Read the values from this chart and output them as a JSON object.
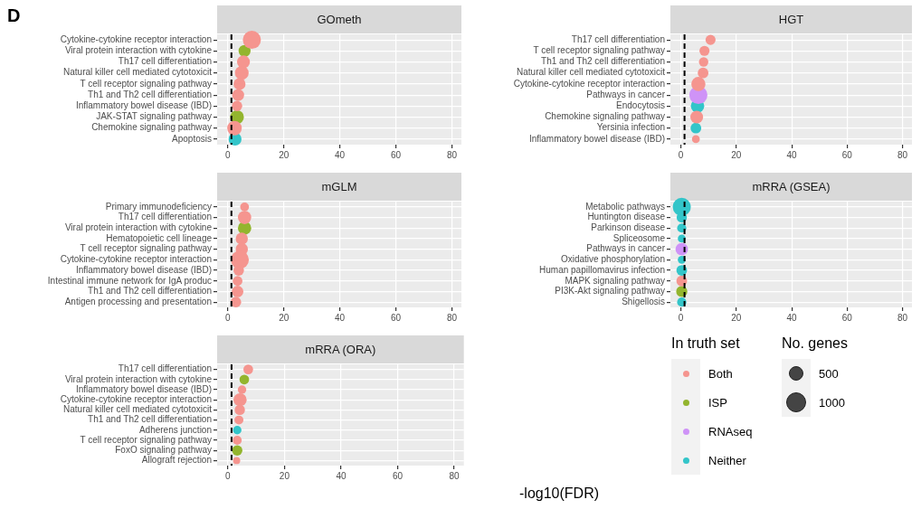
{
  "chart_data": [
    {
      "type": "bubble",
      "orientation": "horizontal",
      "title": "GOmeth",
      "annotations": [
        "D"
      ],
      "categories": [
        "Cytokine-cytokine receptor interaction",
        "Viral protein interaction with cytokine",
        "Th17 cell differentiation",
        "Natural killer cell mediated cytotoxicit",
        "T cell receptor signaling pathway",
        "Th1 and Th2 cell differentiation",
        "Inflammatory bowel disease (IBD)",
        "JAK-STAT signaling pathway",
        "Chemokine signaling pathway",
        "Apoptosis"
      ],
      "xlim": [
        -3.8,
        83.4
      ],
      "xticks": [
        0,
        20,
        40,
        60,
        80
      ],
      "grid": true,
      "ref_lines": [
        {
          "axis": "x",
          "value": 1.3,
          "color": "#000000",
          "line_style": "dashed"
        }
      ],
      "series": [
        {
          "color": "#f5958f",
          "values": [
            8.6,
            null,
            5.6,
            5.0,
            4.2,
            3.7,
            3.3,
            null,
            2.4,
            null
          ],
          "sizes": [
            1,
            null,
            0.51,
            0.58,
            0.44,
            0.44,
            0.33,
            null,
            0.65,
            null
          ]
        },
        {
          "color": "#93b52e",
          "values": [
            null,
            6.0,
            null,
            null,
            null,
            null,
            null,
            3.3,
            null,
            null
          ],
          "sizes": [
            null,
            0.44,
            null,
            null,
            null,
            null,
            null,
            0.58,
            null,
            null
          ]
        },
        {
          "color": "#33c5c9",
          "values": [
            null,
            null,
            null,
            null,
            null,
            null,
            null,
            null,
            null,
            2.6
          ],
          "sizes": [
            null,
            null,
            null,
            null,
            null,
            null,
            null,
            null,
            null,
            0.51
          ]
        }
      ]
    },
    {
      "type": "bubble",
      "orientation": "horizontal",
      "title": "HGT",
      "categories": [
        "Th17 cell differentiation",
        "T cell receptor signaling pathway",
        "Th1 and Th2 cell differentiation",
        "Natural killer cell mediated cytotoxicit",
        "Cytokine-cytokine receptor interaction",
        "Pathways in cancer",
        "Endocytosis",
        "Chemokine signaling pathway",
        "Yersinia infection",
        "Inflammatory bowel disease (IBD)"
      ],
      "xlim": [
        -3.8,
        83.4
      ],
      "xticks": [
        0,
        20,
        40,
        60,
        80
      ],
      "grid": true,
      "ref_lines": [
        {
          "axis": "x",
          "value": 1.3,
          "color": "#000000",
          "line_style": "dashed"
        }
      ],
      "series": [
        {
          "color": "#f5958f",
          "values": [
            10.7,
            8.5,
            8.2,
            8.0,
            6.3,
            null,
            null,
            5.7,
            null,
            5.4
          ],
          "sizes": [
            0.31,
            0.31,
            0.27,
            0.35,
            0.61,
            null,
            null,
            0.5,
            null,
            0.19
          ]
        },
        {
          "color": "#cf93f7",
          "values": [
            null,
            null,
            null,
            null,
            null,
            6.3,
            null,
            null,
            null,
            null
          ],
          "sizes": [
            null,
            null,
            null,
            null,
            null,
            1,
            null,
            null,
            null,
            null
          ]
        },
        {
          "color": "#33c5c9",
          "values": [
            null,
            null,
            null,
            null,
            null,
            null,
            6.0,
            null,
            5.4,
            null
          ],
          "sizes": [
            null,
            null,
            null,
            null,
            null,
            null,
            0.55,
            null,
            0.35,
            null
          ]
        }
      ]
    },
    {
      "type": "bubble",
      "orientation": "horizontal",
      "title": "mGLM",
      "categories": [
        "Primary immunodeficiency",
        "Th17 cell differentiation",
        "Viral protein interaction with cytokine",
        "Hematopoietic cell lineage",
        "T cell receptor signaling pathway",
        "Cytokine-cytokine receptor interaction",
        "Inflammatory bowel disease (IBD)",
        "Intestinal immune network for IgA produc",
        "Th1 and Th2 cell differentiation",
        "Antigen processing and presentation"
      ],
      "xlim": [
        -3.8,
        83.4
      ],
      "xticks": [
        0,
        20,
        40,
        60,
        80
      ],
      "grid": true,
      "ref_lines": [
        {
          "axis": "x",
          "value": 1.3,
          "color": "#000000",
          "line_style": "dashed"
        }
      ],
      "series": [
        {
          "color": "#f5958f",
          "values": [
            6.0,
            6.0,
            null,
            5.0,
            5.0,
            4.3,
            3.9,
            3.5,
            3.5,
            2.9
          ],
          "sizes": [
            0.24,
            0.54,
            null,
            0.46,
            0.46,
            1,
            0.34,
            0.29,
            0.41,
            0.34
          ]
        },
        {
          "color": "#93b52e",
          "values": [
            null,
            null,
            6.0,
            null,
            null,
            null,
            null,
            null,
            null,
            null
          ],
          "sizes": [
            null,
            null,
            0.54,
            null,
            null,
            null,
            null,
            null,
            null,
            null
          ]
        }
      ]
    },
    {
      "type": "bubble",
      "orientation": "horizontal",
      "title": "mRRA (GSEA)",
      "categories": [
        "Metabolic pathways",
        "Huntington disease",
        "Parkinson disease",
        "Spliceosome",
        "Pathways in cancer",
        "Oxidative phosphorylation",
        "Human papillomavirus infection",
        "MAPK signaling pathway",
        "PI3K-Akt signaling pathway",
        "Shigellosis"
      ],
      "xlim": [
        -3.8,
        83.4
      ],
      "xticks": [
        0,
        20,
        40,
        60,
        80
      ],
      "grid": true,
      "ref_lines": [
        {
          "axis": "x",
          "value": 1.3,
          "color": "#000000",
          "line_style": "dashed"
        }
      ],
      "series": [
        {
          "color": "#33c5c9",
          "values": [
            0.3,
            0.3,
            0.3,
            0.3,
            null,
            0.3,
            0.3,
            null,
            null,
            0.3
          ],
          "sizes": [
            1,
            0.32,
            0.26,
            0.19,
            null,
            0.19,
            0.35,
            null,
            null,
            0.26
          ]
        },
        {
          "color": "#cf93f7",
          "values": [
            null,
            null,
            null,
            null,
            0.3,
            null,
            null,
            null,
            null,
            null
          ],
          "sizes": [
            null,
            null,
            null,
            null,
            0.48,
            null,
            null,
            null,
            null,
            null
          ]
        },
        {
          "color": "#f5958f",
          "values": [
            null,
            null,
            null,
            null,
            null,
            null,
            null,
            0.3,
            null,
            null
          ],
          "sizes": [
            null,
            null,
            null,
            null,
            null,
            null,
            null,
            0.35,
            null,
            null
          ]
        },
        {
          "color": "#93b52e",
          "values": [
            null,
            null,
            null,
            null,
            null,
            null,
            null,
            null,
            0.3,
            null
          ],
          "sizes": [
            null,
            null,
            null,
            null,
            null,
            null,
            null,
            null,
            0.38,
            null
          ]
        }
      ]
    },
    {
      "type": "bubble",
      "orientation": "horizontal",
      "title": "mRRA (ORA)",
      "xlabel": "-log10(FDR)",
      "legend": "right",
      "legend_title": "In truth set",
      "size_legend": [
        500,
        1000
      ],
      "annotations": [
        "No. genes"
      ],
      "categories": [
        "Th17 cell differentiation",
        "Viral protein interaction with cytokine",
        "Inflammatory bowel disease (IBD)",
        "Cytokine-cytokine receptor interaction",
        "Natural killer cell mediated cytotoxicit",
        "Th1 and Th2 cell differentiation",
        "Adherens junction",
        "T cell receptor signaling pathway",
        "FoxO signaling pathway",
        "Allograft rejection"
      ],
      "xlim": [
        -3.8,
        83.4
      ],
      "xticks": [
        0,
        20,
        40,
        60,
        80
      ],
      "grid": true,
      "ref_lines": [
        {
          "axis": "x",
          "value": 1.3,
          "color": "#000000",
          "line_style": "dashed"
        }
      ],
      "series": [
        {
          "name": "Both",
          "color": "#f5958f",
          "values": [
            7.2,
            null,
            5.0,
            4.3,
            4.2,
            3.9,
            null,
            3.3,
            null,
            3.1
          ],
          "sizes": [
            220,
            null,
            170,
            410,
            250,
            190,
            null,
            190,
            null,
            120
          ]
        },
        {
          "name": "ISP",
          "color": "#93b52e",
          "values": [
            null,
            5.8,
            null,
            null,
            null,
            null,
            null,
            null,
            3.3,
            null
          ],
          "sizes": [
            null,
            220,
            null,
            null,
            null,
            null,
            null,
            null,
            250,
            null
          ]
        },
        {
          "name": "RNAseq",
          "color": "#cf93f7",
          "values": [
            null,
            null,
            null,
            null,
            null,
            null,
            null,
            null,
            null,
            null
          ],
          "sizes": [
            null,
            null,
            null,
            null,
            null,
            null,
            null,
            null,
            null,
            null
          ]
        },
        {
          "name": "Neither",
          "color": "#33c5c9",
          "values": [
            null,
            null,
            null,
            null,
            null,
            null,
            3.3,
            null,
            null,
            null
          ],
          "sizes": [
            null,
            null,
            null,
            null,
            null,
            null,
            170,
            null,
            null,
            null
          ]
        }
      ]
    }
  ]
}
